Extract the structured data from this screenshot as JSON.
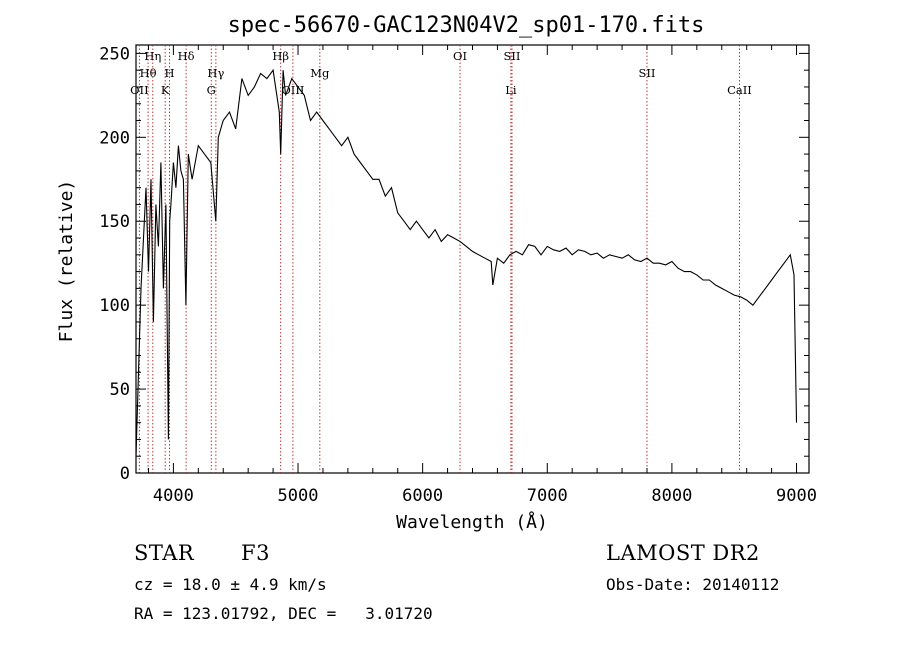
{
  "chart_data": {
    "type": "line",
    "title": "spec-56670-GAC123N04V2_sp01-170.fits",
    "xlabel": "Wavelength (Å)",
    "ylabel": "Flux (relative)",
    "xlim": [
      3700,
      9100
    ],
    "ylim": [
      0,
      255
    ],
    "xticks": [
      4000,
      5000,
      6000,
      7000,
      8000,
      9000
    ],
    "yticks": [
      0,
      50,
      100,
      150,
      200,
      250
    ],
    "grid": false,
    "series": [
      {
        "x": [
          3700,
          3720,
          3740,
          3760,
          3780,
          3800,
          3820,
          3840,
          3860,
          3880,
          3900,
          3920,
          3940,
          3960,
          3970,
          3980,
          4000,
          4020,
          4040,
          4060,
          4080,
          4100,
          4120,
          4150,
          4200,
          4250,
          4300,
          4340,
          4360,
          4400,
          4450,
          4500,
          4550,
          4600,
          4650,
          4700,
          4750,
          4800,
          4850,
          4861,
          4880,
          4900,
          4950,
          5000,
          5050,
          5100,
          5150,
          5200,
          5250,
          5300,
          5350,
          5400,
          5450,
          5500,
          5550,
          5600,
          5650,
          5700,
          5750,
          5800,
          5850,
          5900,
          5950,
          6000,
          6050,
          6100,
          6150,
          6200,
          6250,
          6300,
          6350,
          6400,
          6450,
          6500,
          6550,
          6563,
          6600,
          6650,
          6700,
          6750,
          6800,
          6850,
          6900,
          6950,
          7000,
          7050,
          7100,
          7150,
          7200,
          7250,
          7300,
          7350,
          7400,
          7450,
          7500,
          7550,
          7600,
          7650,
          7700,
          7750,
          7800,
          7850,
          7900,
          7950,
          8000,
          8050,
          8100,
          8150,
          8200,
          8250,
          8300,
          8350,
          8400,
          8450,
          8500,
          8550,
          8600,
          8650,
          8700,
          8750,
          8800,
          8850,
          8900,
          8950,
          8980,
          9000
        ],
        "y": [
          10,
          60,
          110,
          140,
          170,
          120,
          175,
          90,
          160,
          135,
          185,
          110,
          160,
          20,
          150,
          160,
          185,
          170,
          195,
          180,
          175,
          100,
          190,
          175,
          195,
          190,
          185,
          150,
          200,
          210,
          215,
          205,
          235,
          225,
          230,
          238,
          235,
          240,
          215,
          190,
          240,
          225,
          235,
          230,
          225,
          210,
          215,
          210,
          205,
          200,
          195,
          200,
          190,
          185,
          180,
          175,
          175,
          165,
          170,
          155,
          150,
          145,
          150,
          145,
          140,
          145,
          138,
          142,
          140,
          138,
          135,
          132,
          130,
          128,
          126,
          112,
          128,
          125,
          130,
          132,
          130,
          136,
          135,
          130,
          135,
          133,
          132,
          134,
          130,
          133,
          132,
          130,
          131,
          128,
          130,
          129,
          128,
          130,
          127,
          126,
          128,
          125,
          125,
          124,
          126,
          122,
          120,
          120,
          118,
          115,
          115,
          112,
          110,
          108,
          106,
          105,
          103,
          100,
          105,
          110,
          115,
          120,
          125,
          130,
          118,
          30
        ]
      }
    ],
    "spectral_lines": [
      {
        "label": "OII",
        "x": 3727,
        "row": 3
      },
      {
        "label": "Hθ",
        "x": 3797,
        "row": 2
      },
      {
        "label": "Hη",
        "x": 3835,
        "row": 1
      },
      {
        "label": "K",
        "x": 3934,
        "row": 3
      },
      {
        "label": "H",
        "x": 3969,
        "row": 2
      },
      {
        "label": "Hδ",
        "x": 4102,
        "row": 1
      },
      {
        "label": "G",
        "x": 4304,
        "row": 3
      },
      {
        "label": "Hγ",
        "x": 4341,
        "row": 2
      },
      {
        "label": "Hβ",
        "x": 4861,
        "row": 1
      },
      {
        "label": "OIII",
        "x": 4959,
        "row": 3
      },
      {
        "label": "Mg",
        "x": 5175,
        "row": 2
      },
      {
        "label": "OI",
        "x": 6300,
        "row": 1
      },
      {
        "label": "SII",
        "x": 6717,
        "row": 1
      },
      {
        "label": "Li",
        "x": 6708,
        "row": 3
      },
      {
        "label": "SII",
        "x": 7800,
        "row": 2
      },
      {
        "label": "CaII",
        "x": 8542,
        "row": 3
      }
    ]
  },
  "info": {
    "object_type": "STAR",
    "subclass": "F3",
    "cz": "cz = 18.0 ± 4.9 km/s",
    "ra_dec": "RA = 123.01792, DEC =   3.01720",
    "survey": "LAMOST DR2",
    "obs_date": "Obs-Date: 20140112"
  }
}
